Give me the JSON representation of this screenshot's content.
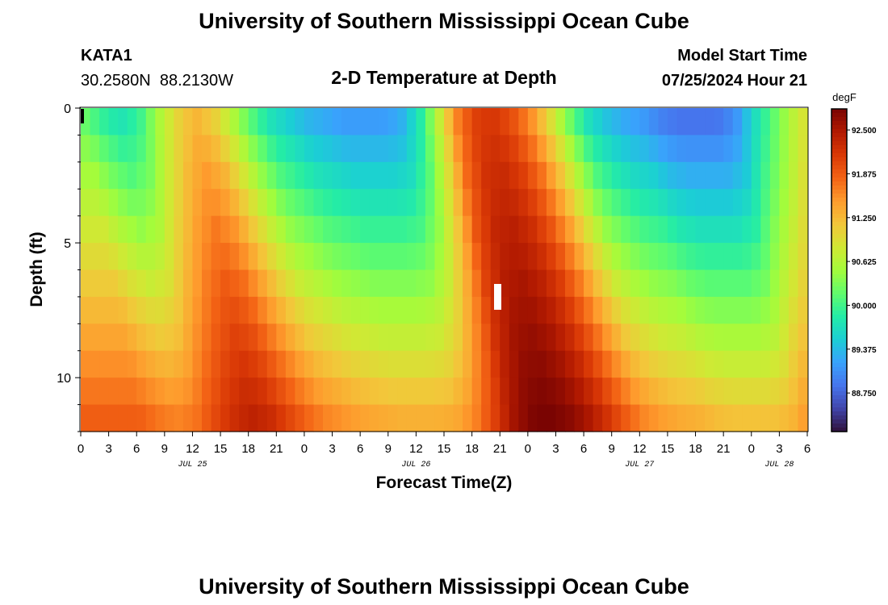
{
  "header": {
    "title": "University of Southern Mississippi Ocean Cube",
    "station_id": "KATA1",
    "station_coords": "30.2580N  88.2130W",
    "plot_title": "2-D Temperature at Depth",
    "model_start_label": "Model Start Time",
    "model_start_value": "07/25/2024 Hour 21"
  },
  "footer": {
    "title": "University of Southern Mississippi Ocean Cube"
  },
  "chart_data": {
    "type": "heatmap",
    "title": "2-D Temperature at Depth",
    "xlabel": "Forecast Time(Z)",
    "ylabel": "Depth (ft)",
    "y_ticks": [
      "0",
      "5",
      "10"
    ],
    "y_range": [
      0,
      12
    ],
    "x_tick_labels": [
      "0",
      "3",
      "6",
      "9",
      "12",
      "15",
      "18",
      "21",
      "0",
      "3",
      "6",
      "9",
      "12",
      "15",
      "18",
      "21",
      "0",
      "3",
      "6",
      "9",
      "12",
      "15",
      "18",
      "21",
      "0",
      "3",
      "6"
    ],
    "x_range_hours": [
      0,
      78
    ],
    "date_labels": [
      {
        "label": "JUL 25",
        "hour": 12
      },
      {
        "label": "JUL 26",
        "hour": 36
      },
      {
        "label": "JUL 27",
        "hour": 60
      },
      {
        "label": "JUL 28",
        "hour": 75
      }
    ],
    "colorbar": {
      "unit": "degF",
      "min": 88.2,
      "max": 92.8,
      "tick_labels": [
        "92.500",
        "91.875",
        "91.250",
        "90.625",
        "90.000",
        "89.375",
        "88.750"
      ],
      "tick_values": [
        92.5,
        91.875,
        91.25,
        90.625,
        90.0,
        89.375,
        88.75
      ],
      "colors": [
        "#30123b",
        "#4145ab",
        "#4675ed",
        "#39a2fc",
        "#1bcfd4",
        "#24eca6",
        "#61fc6c",
        "#a4fc3b",
        "#d1e834",
        "#f3c63a",
        "#fe9b2d",
        "#f36315",
        "#d93806",
        "#b11901",
        "#7a0402"
      ]
    },
    "surface_temps_degF": [
      89.9,
      89.6,
      89.4,
      89.6,
      90.2,
      90.7,
      91.0,
      90.8,
      90.3,
      89.8,
      89.4,
      89.2,
      89.0,
      88.9,
      88.8,
      88.8,
      88.8,
      88.9,
      89.4,
      90.3,
      91.3,
      91.8,
      91.9,
      91.7,
      91.3,
      90.7,
      90.0,
      89.4,
      89.1,
      88.9,
      88.8,
      88.6,
      88.5,
      88.5,
      88.5,
      88.7,
      89.3,
      89.8,
      90.3,
      90.7
    ],
    "grid": false,
    "legend": "colorbar-right"
  }
}
